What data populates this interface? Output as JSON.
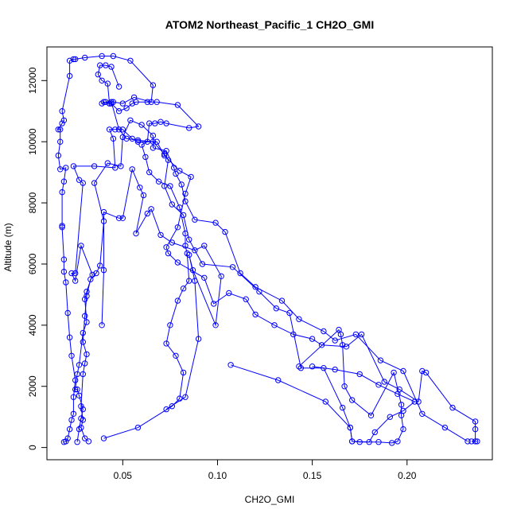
{
  "chart_data": {
    "type": "line",
    "title": "ATOM2 Northeast_Pacific_1 CH2O_GMI",
    "xlabel": "CH2O_GMI",
    "ylabel": "Altitude (m)",
    "xlim": [
      0.01,
      0.245
    ],
    "ylim": [
      -400,
      13100
    ],
    "x_ticks": [
      0.05,
      0.1,
      0.15,
      0.2
    ],
    "x_tick_labels": [
      "0.05",
      "0.10",
      "0.15",
      "0.20"
    ],
    "y_ticks": [
      0,
      2000,
      4000,
      6000,
      8000,
      10000,
      12000
    ],
    "y_tick_labels": [
      "0",
      "2000",
      "4000",
      "6000",
      "8000",
      "10000",
      "12000"
    ],
    "grid": false,
    "legend": "none",
    "marker": "open-circle",
    "color": "#0000ff",
    "series": [
      {
        "points": [
          [
            0.019,
            180
          ],
          [
            0.02,
            200
          ],
          [
            0.021,
            300
          ],
          [
            0.022,
            600
          ],
          [
            0.023,
            900
          ],
          [
            0.024,
            1100
          ],
          [
            0.024,
            1650
          ],
          [
            0.025,
            2200
          ],
          [
            0.023,
            3000
          ],
          [
            0.022,
            3600
          ],
          [
            0.021,
            4400
          ],
          [
            0.02,
            5400
          ],
          [
            0.019,
            5750
          ],
          [
            0.019,
            6150
          ],
          [
            0.018,
            7200
          ],
          [
            0.018,
            7250
          ],
          [
            0.018,
            8350
          ],
          [
            0.019,
            8700
          ],
          [
            0.02,
            9150
          ],
          [
            0.017,
            9100
          ],
          [
            0.016,
            9550
          ],
          [
            0.017,
            10000
          ],
          [
            0.017,
            10400
          ],
          [
            0.016,
            10400
          ],
          [
            0.018,
            10600
          ],
          [
            0.019,
            10700
          ],
          [
            0.018,
            11000
          ],
          [
            0.022,
            12150
          ],
          [
            0.022,
            12650
          ],
          [
            0.024,
            12700
          ],
          [
            0.025,
            12700
          ],
          [
            0.03,
            12750
          ],
          [
            0.039,
            12800
          ],
          [
            0.045,
            12800
          ],
          [
            0.054,
            12650
          ],
          [
            0.066,
            11850
          ],
          [
            0.065,
            11300
          ],
          [
            0.056,
            11450
          ],
          [
            0.05,
            11250
          ],
          [
            0.045,
            11300
          ],
          [
            0.043,
            11250
          ],
          [
            0.04,
            11300
          ],
          [
            0.039,
            11250
          ],
          [
            0.041,
            11300
          ],
          [
            0.044,
            11300
          ],
          [
            0.048,
            10400
          ],
          [
            0.052,
            10100
          ],
          [
            0.058,
            10050
          ],
          [
            0.066,
            10000
          ],
          [
            0.072,
            9600
          ],
          [
            0.074,
            9400
          ],
          [
            0.072,
            8550
          ],
          [
            0.076,
            7950
          ],
          [
            0.082,
            7600
          ],
          [
            0.085,
            6800
          ],
          [
            0.092,
            6000
          ],
          [
            0.108,
            5900
          ],
          [
            0.122,
            5100
          ],
          [
            0.131,
            4550
          ],
          [
            0.138,
            4400
          ],
          [
            0.144,
            2600
          ],
          [
            0.156,
            2600
          ],
          [
            0.166,
            1300
          ],
          [
            0.17,
            650
          ],
          [
            0.171,
            200
          ],
          [
            0.175,
            180
          ],
          [
            0.185,
            180
          ],
          [
            0.192,
            150
          ],
          [
            0.195,
            200
          ],
          [
            0.198,
            600
          ],
          [
            0.197,
            1050
          ],
          [
            0.197,
            1400
          ],
          [
            0.193,
            2450
          ],
          [
            0.181,
            1050
          ],
          [
            0.171,
            1550
          ],
          [
            0.167,
            2000
          ],
          [
            0.166,
            3350
          ],
          [
            0.165,
            3700
          ],
          [
            0.164,
            3850
          ],
          [
            0.143,
            2650
          ]
        ]
      },
      {
        "points": [
          [
            0.026,
            180
          ],
          [
            0.027,
            600
          ],
          [
            0.028,
            950
          ],
          [
            0.029,
            1250
          ],
          [
            0.027,
            1700
          ],
          [
            0.026,
            1900
          ],
          [
            0.025,
            1900
          ],
          [
            0.026,
            2400
          ],
          [
            0.027,
            2700
          ],
          [
            0.029,
            3750
          ],
          [
            0.031,
            4100
          ],
          [
            0.03,
            4850
          ],
          [
            0.031,
            5100
          ],
          [
            0.034,
            5650
          ],
          [
            0.028,
            6600
          ],
          [
            0.025,
            5450
          ],
          [
            0.023,
            5700
          ],
          [
            0.025,
            5700
          ],
          [
            0.029,
            8650
          ],
          [
            0.027,
            8750
          ],
          [
            0.024,
            9200
          ],
          [
            0.035,
            9200
          ],
          [
            0.046,
            9150
          ],
          [
            0.045,
            10100
          ],
          [
            0.043,
            10400
          ],
          [
            0.046,
            10400
          ],
          [
            0.05,
            10400
          ],
          [
            0.055,
            10100
          ],
          [
            0.058,
            10000
          ],
          [
            0.068,
            10000
          ],
          [
            0.072,
            9550
          ],
          [
            0.08,
            9050
          ],
          [
            0.086,
            8850
          ],
          [
            0.083,
            8300
          ],
          [
            0.079,
            7200
          ],
          [
            0.073,
            6550
          ],
          [
            0.074,
            6350
          ],
          [
            0.079,
            6050
          ],
          [
            0.093,
            5550
          ],
          [
            0.098,
            4700
          ],
          [
            0.106,
            5050
          ],
          [
            0.115,
            4850
          ],
          [
            0.12,
            4350
          ],
          [
            0.13,
            4000
          ],
          [
            0.14,
            3700
          ],
          [
            0.15,
            3550
          ],
          [
            0.155,
            3350
          ],
          [
            0.168,
            3300
          ],
          [
            0.176,
            3700
          ],
          [
            0.188,
            2150
          ],
          [
            0.196,
            1900
          ],
          [
            0.206,
            1500
          ],
          [
            0.208,
            2500
          ],
          [
            0.21,
            2450
          ],
          [
            0.224,
            1300
          ],
          [
            0.236,
            850
          ],
          [
            0.236,
            600
          ],
          [
            0.236,
            200
          ],
          [
            0.237,
            200
          ],
          [
            0.234,
            200
          ]
        ]
      },
      {
        "points": [
          [
            0.032,
            200
          ],
          [
            0.03,
            300
          ],
          [
            0.028,
            650
          ],
          [
            0.029,
            900
          ],
          [
            0.028,
            1350
          ],
          [
            0.029,
            2400
          ],
          [
            0.03,
            2750
          ],
          [
            0.031,
            3050
          ],
          [
            0.029,
            3450
          ],
          [
            0.03,
            4300
          ],
          [
            0.031,
            4950
          ],
          [
            0.033,
            5500
          ],
          [
            0.036,
            5700
          ],
          [
            0.038,
            5950
          ],
          [
            0.04,
            7400
          ],
          [
            0.035,
            8650
          ],
          [
            0.042,
            9300
          ],
          [
            0.049,
            9200
          ],
          [
            0.05,
            10150
          ],
          [
            0.054,
            10700
          ],
          [
            0.06,
            10550
          ],
          [
            0.066,
            10200
          ],
          [
            0.066,
            9800
          ],
          [
            0.073,
            9700
          ],
          [
            0.077,
            9150
          ],
          [
            0.078,
            8950
          ],
          [
            0.081,
            8600
          ],
          [
            0.083,
            8050
          ],
          [
            0.088,
            7450
          ],
          [
            0.099,
            7350
          ],
          [
            0.104,
            7050
          ],
          [
            0.112,
            5700
          ],
          [
            0.12,
            5250
          ],
          [
            0.134,
            4800
          ],
          [
            0.143,
            4200
          ],
          [
            0.156,
            3800
          ],
          [
            0.162,
            3500
          ],
          [
            0.173,
            3700
          ],
          [
            0.186,
            2850
          ],
          [
            0.198,
            2500
          ],
          [
            0.208,
            1100
          ],
          [
            0.22,
            650
          ],
          [
            0.232,
            200
          ]
        ]
      },
      {
        "points": [
          [
            0.04,
            300
          ],
          [
            0.058,
            650
          ],
          [
            0.076,
            1350
          ],
          [
            0.08,
            1600
          ],
          [
            0.082,
            2450
          ],
          [
            0.078,
            3000
          ],
          [
            0.073,
            3400
          ],
          [
            0.075,
            4000
          ],
          [
            0.079,
            4800
          ],
          [
            0.082,
            5200
          ],
          [
            0.085,
            5450
          ],
          [
            0.084,
            6350
          ],
          [
            0.083,
            6600
          ],
          [
            0.083,
            7000
          ],
          [
            0.08,
            7850
          ],
          [
            0.075,
            8550
          ],
          [
            0.069,
            8700
          ],
          [
            0.064,
            9000
          ],
          [
            0.062,
            9500
          ],
          [
            0.06,
            9900
          ],
          [
            0.063,
            10000
          ],
          [
            0.064,
            10600
          ],
          [
            0.067,
            10600
          ],
          [
            0.07,
            10650
          ],
          [
            0.073,
            10600
          ],
          [
            0.085,
            10450
          ],
          [
            0.09,
            10500
          ],
          [
            0.079,
            11200
          ],
          [
            0.068,
            11300
          ],
          [
            0.063,
            11300
          ],
          [
            0.057,
            11300
          ],
          [
            0.055,
            11250
          ],
          [
            0.052,
            11100
          ],
          [
            0.048,
            11000
          ],
          [
            0.044,
            11250
          ],
          [
            0.043,
            11250
          ],
          [
            0.042,
            11900
          ],
          [
            0.039,
            12000
          ],
          [
            0.037,
            12200
          ],
          [
            0.038,
            12500
          ],
          [
            0.041,
            12500
          ],
          [
            0.044,
            12450
          ],
          [
            0.048,
            11800
          ]
        ]
      },
      {
        "points": [
          [
            0.039,
            4000
          ],
          [
            0.04,
            5800
          ],
          [
            0.04,
            7700
          ],
          [
            0.048,
            7500
          ],
          [
            0.05,
            7500
          ],
          [
            0.055,
            9100
          ],
          [
            0.059,
            8500
          ],
          [
            0.061,
            8250
          ],
          [
            0.057,
            7000
          ],
          [
            0.063,
            7650
          ],
          [
            0.065,
            7800
          ],
          [
            0.07,
            6950
          ],
          [
            0.076,
            6700
          ],
          [
            0.088,
            6450
          ],
          [
            0.093,
            6600
          ],
          [
            0.102,
            5600
          ],
          [
            0.099,
            4000
          ],
          [
            0.087,
            5800
          ],
          [
            0.085,
            6300
          ],
          [
            0.088,
            5450
          ],
          [
            0.09,
            3550
          ],
          [
            0.083,
            1650
          ],
          [
            0.073,
            1250
          ]
        ]
      },
      {
        "points": [
          [
            0.107,
            2700
          ],
          [
            0.132,
            2200
          ],
          [
            0.157,
            1500
          ],
          [
            0.17,
            650
          ],
          [
            0.171,
            200
          ],
          [
            0.18,
            180
          ],
          [
            0.183,
            500
          ],
          [
            0.191,
            1000
          ],
          [
            0.198,
            1200
          ],
          [
            0.204,
            1500
          ],
          [
            0.195,
            1750
          ],
          [
            0.185,
            2050
          ],
          [
            0.175,
            2400
          ],
          [
            0.162,
            2550
          ],
          [
            0.15,
            2650
          ]
        ]
      }
    ]
  }
}
